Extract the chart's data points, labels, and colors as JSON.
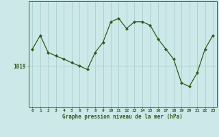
{
  "x": [
    0,
    1,
    2,
    3,
    4,
    5,
    6,
    7,
    8,
    9,
    10,
    11,
    12,
    13,
    14,
    15,
    16,
    17,
    18,
    19,
    20,
    21,
    22,
    23
  ],
  "y": [
    1021.5,
    1023.5,
    1021.0,
    1020.5,
    1020.0,
    1019.5,
    1019.0,
    1018.5,
    1021.0,
    1022.5,
    1025.5,
    1026.0,
    1024.5,
    1025.5,
    1025.5,
    1025.0,
    1023.0,
    1021.5,
    1020.0,
    1016.5,
    1016.0,
    1018.0,
    1021.5,
    1023.5
  ],
  "ytick_label": "1019",
  "ytick_value": 1019,
  "xlabel": "Graphe pression niveau de la mer (hPa)",
  "line_color": "#2d5a1b",
  "marker_color": "#2d5a1b",
  "bg_color": "#cce8e8",
  "grid_color": "#aacece",
  "axis_color": "#2d5a1b",
  "tick_color": "#2d5a1b",
  "label_color": "#2d5a1b",
  "ylim_min": 1013.0,
  "ylim_max": 1028.5,
  "figsize": [
    3.2,
    2.0
  ],
  "dpi": 100
}
